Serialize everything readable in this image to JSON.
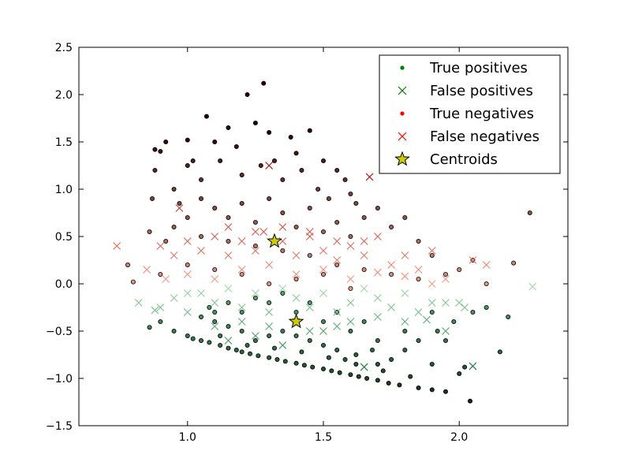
{
  "chart_data": {
    "type": "scatter",
    "title": "",
    "xlabel": "",
    "ylabel": "",
    "xlim": [
      0.6,
      2.4
    ],
    "ylim": [
      -1.5,
      2.5
    ],
    "grid": false,
    "legend_position": "top-right",
    "x_ticks": [
      {
        "value": 1.0,
        "label": "1.0"
      },
      {
        "value": 1.5,
        "label": "1.5"
      },
      {
        "value": 2.0,
        "label": "2.0"
      }
    ],
    "y_ticks": [
      {
        "value": -1.5,
        "label": "−1.5"
      },
      {
        "value": -1.0,
        "label": "−1.0"
      },
      {
        "value": -0.5,
        "label": "−0.5"
      },
      {
        "value": 0.0,
        "label": "0.0"
      },
      {
        "value": 0.5,
        "label": "0.5"
      },
      {
        "value": 1.0,
        "label": "1.0"
      },
      {
        "value": 1.5,
        "label": "1.5"
      },
      {
        "value": 2.0,
        "label": "2.0"
      },
      {
        "value": 2.5,
        "label": "2.5"
      }
    ],
    "legend": [
      {
        "label": "True positives",
        "marker": "dot",
        "color": "#008000"
      },
      {
        "label": "False positives",
        "marker": "x",
        "color": "#008000"
      },
      {
        "label": "True negatives",
        "marker": "dot",
        "color": "#ff0000"
      },
      {
        "label": "False negatives",
        "marker": "x",
        "color": "#ff0000"
      },
      {
        "label": "Centroids",
        "marker": "star",
        "color": "#cccc00"
      }
    ],
    "colors": {
      "tp_dark": "#0d2b14",
      "tp_light": "#4ca56a",
      "fp_dark": "#1a7a3a",
      "fp_light": "#a7dfb0",
      "tn_dark": "#2a0000",
      "tn_light": "#f0a18a",
      "fn_dark": "#b01010",
      "fn_light": "#f8a08a",
      "centroid": "#cccc00"
    },
    "series": [
      {
        "name": "True positives",
        "points": [
          [
            1.0,
            -0.55
          ],
          [
            1.02,
            -0.58
          ],
          [
            1.05,
            -0.6
          ],
          [
            1.08,
            -0.62
          ],
          [
            1.12,
            -0.65
          ],
          [
            1.15,
            -0.68
          ],
          [
            1.18,
            -0.7
          ],
          [
            1.2,
            -0.72
          ],
          [
            1.23,
            -0.74
          ],
          [
            1.26,
            -0.76
          ],
          [
            1.3,
            -0.78
          ],
          [
            1.33,
            -0.8
          ],
          [
            1.36,
            -0.82
          ],
          [
            1.4,
            -0.84
          ],
          [
            1.43,
            -0.86
          ],
          [
            1.46,
            -0.88
          ],
          [
            1.5,
            -0.9
          ],
          [
            1.53,
            -0.92
          ],
          [
            1.56,
            -0.94
          ],
          [
            1.6,
            -0.96
          ],
          [
            1.63,
            -0.98
          ],
          [
            1.66,
            -1.0
          ],
          [
            1.7,
            -1.02
          ],
          [
            1.74,
            -1.05
          ],
          [
            1.78,
            -1.07
          ],
          [
            1.85,
            -1.1
          ],
          [
            1.9,
            -1.12
          ],
          [
            1.95,
            -1.14
          ],
          [
            2.04,
            -1.24
          ],
          [
            1.9,
            -0.85
          ],
          [
            2.0,
            -0.95
          ],
          [
            2.15,
            -0.72
          ],
          [
            2.18,
            -0.35
          ],
          [
            2.1,
            -0.25
          ],
          [
            2.05,
            -0.3
          ],
          [
            1.98,
            -0.4
          ],
          [
            1.92,
            -0.5
          ],
          [
            1.85,
            -0.6
          ],
          [
            1.8,
            -0.7
          ],
          [
            1.75,
            -0.8
          ],
          [
            1.7,
            -0.85
          ],
          [
            1.68,
            -0.7
          ],
          [
            1.62,
            -0.75
          ],
          [
            1.58,
            -0.8
          ],
          [
            1.55,
            -0.7
          ],
          [
            1.5,
            -0.65
          ],
          [
            1.45,
            -0.6
          ],
          [
            1.4,
            -0.55
          ],
          [
            1.35,
            -0.5
          ],
          [
            1.3,
            -0.55
          ],
          [
            1.25,
            -0.6
          ],
          [
            1.2,
            -0.5
          ],
          [
            1.15,
            -0.45
          ],
          [
            1.1,
            -0.4
          ],
          [
            1.05,
            -0.35
          ],
          [
            0.95,
            -0.5
          ],
          [
            0.9,
            -0.4
          ],
          [
            0.86,
            -0.46
          ],
          [
            1.1,
            -0.3
          ],
          [
            1.2,
            -0.3
          ],
          [
            1.3,
            -0.2
          ],
          [
            1.4,
            -0.3
          ],
          [
            1.5,
            -0.4
          ],
          [
            1.6,
            -0.5
          ],
          [
            1.7,
            -0.6
          ],
          [
            1.8,
            -0.5
          ],
          [
            1.9,
            -0.3
          ],
          [
            1.95,
            -0.6
          ],
          [
            2.02,
            -0.88
          ],
          [
            1.65,
            -0.4
          ],
          [
            1.55,
            -0.3
          ],
          [
            1.45,
            -0.2
          ],
          [
            1.35,
            -0.1
          ],
          [
            1.25,
            -0.15
          ],
          [
            1.15,
            -0.2
          ],
          [
            1.08,
            -0.25
          ],
          [
            1.12,
            -0.55
          ],
          [
            1.22,
            -0.65
          ],
          [
            1.32,
            -0.68
          ],
          [
            1.42,
            -0.72
          ],
          [
            1.52,
            -0.78
          ],
          [
            1.62,
            -0.85
          ],
          [
            1.72,
            -0.92
          ],
          [
            1.82,
            -0.98
          ]
        ]
      },
      {
        "name": "False positives",
        "points": [
          [
            0.82,
            -0.2
          ],
          [
            0.88,
            -0.28
          ],
          [
            0.9,
            -0.25
          ],
          [
            0.95,
            -0.15
          ],
          [
            1.0,
            -0.3
          ],
          [
            1.05,
            -0.1
          ],
          [
            1.1,
            -0.2
          ],
          [
            1.15,
            -0.05
          ],
          [
            1.2,
            -0.25
          ],
          [
            1.25,
            -0.1
          ],
          [
            1.3,
            -0.3
          ],
          [
            1.35,
            -0.05
          ],
          [
            1.4,
            -0.15
          ],
          [
            1.45,
            -0.25
          ],
          [
            1.5,
            -0.1
          ],
          [
            1.55,
            -0.3
          ],
          [
            1.6,
            -0.2
          ],
          [
            1.65,
            -0.05
          ],
          [
            1.7,
            -0.15
          ],
          [
            1.75,
            -0.25
          ],
          [
            1.8,
            -0.1
          ],
          [
            1.85,
            -0.3
          ],
          [
            1.9,
            -0.2
          ],
          [
            1.95,
            -0.2
          ],
          [
            2.0,
            -0.2
          ],
          [
            2.02,
            -0.25
          ],
          [
            2.27,
            -0.03
          ],
          [
            1.95,
            -0.5
          ],
          [
            2.05,
            -0.87
          ],
          [
            1.65,
            -0.88
          ],
          [
            1.15,
            -0.6
          ],
          [
            1.25,
            -0.55
          ],
          [
            1.35,
            -0.65
          ],
          [
            1.45,
            -0.5
          ],
          [
            1.55,
            -0.45
          ],
          [
            1.0,
            -0.1
          ],
          [
            1.1,
            -0.45
          ],
          [
            1.2,
            -0.4
          ],
          [
            1.3,
            -0.45
          ],
          [
            1.4,
            -0.4
          ],
          [
            1.5,
            -0.5
          ],
          [
            1.6,
            -0.4
          ],
          [
            1.7,
            -0.35
          ],
          [
            1.8,
            -0.4
          ],
          [
            1.88,
            -0.38
          ]
        ]
      },
      {
        "name": "True negatives",
        "points": [
          [
            0.78,
            0.2
          ],
          [
            0.8,
            0.02
          ],
          [
            0.86,
            0.55
          ],
          [
            0.87,
            0.9
          ],
          [
            0.88,
            1.2
          ],
          [
            0.88,
            1.42
          ],
          [
            0.9,
            1.4
          ],
          [
            0.92,
            1.5
          ],
          [
            0.95,
            1.0
          ],
          [
            0.97,
            0.85
          ],
          [
            1.0,
            1.25
          ],
          [
            1.0,
            1.52
          ],
          [
            1.02,
            1.3
          ],
          [
            1.05,
            1.1
          ],
          [
            1.07,
            1.77
          ],
          [
            1.1,
            1.5
          ],
          [
            1.12,
            1.3
          ],
          [
            1.15,
            1.65
          ],
          [
            1.18,
            1.45
          ],
          [
            1.2,
            1.15
          ],
          [
            1.22,
            2.0
          ],
          [
            1.25,
            1.7
          ],
          [
            1.27,
            1.25
          ],
          [
            1.28,
            2.12
          ],
          [
            1.3,
            1.6
          ],
          [
            1.32,
            1.3
          ],
          [
            1.35,
            1.1
          ],
          [
            1.38,
            1.55
          ],
          [
            1.4,
            1.38
          ],
          [
            1.42,
            1.2
          ],
          [
            1.45,
            1.62
          ],
          [
            1.48,
            1.0
          ],
          [
            1.5,
            1.3
          ],
          [
            1.52,
            0.9
          ],
          [
            1.55,
            1.2
          ],
          [
            1.58,
            1.1
          ],
          [
            1.6,
            0.95
          ],
          [
            1.62,
            0.85
          ],
          [
            1.65,
            0.7
          ],
          [
            1.7,
            0.8
          ],
          [
            1.75,
            0.6
          ],
          [
            1.8,
            0.7
          ],
          [
            1.85,
            0.45
          ],
          [
            1.9,
            0.3
          ],
          [
            1.95,
            0.1
          ],
          [
            2.0,
            0.15
          ],
          [
            2.05,
            0.25
          ],
          [
            2.1,
            0.0
          ],
          [
            2.2,
            0.22
          ],
          [
            2.26,
            0.75
          ],
          [
            1.05,
            0.9
          ],
          [
            1.1,
            0.8
          ],
          [
            1.15,
            0.7
          ],
          [
            1.2,
            0.85
          ],
          [
            1.25,
            0.65
          ],
          [
            1.3,
            0.9
          ],
          [
            1.35,
            0.75
          ],
          [
            1.4,
            0.6
          ],
          [
            1.45,
            0.8
          ],
          [
            1.5,
            0.55
          ],
          [
            1.55,
            0.65
          ],
          [
            1.6,
            0.5
          ],
          [
            1.0,
            0.7
          ],
          [
            0.95,
            0.6
          ],
          [
            0.92,
            0.45
          ],
          [
            1.05,
            0.5
          ],
          [
            1.15,
            0.45
          ],
          [
            1.25,
            0.4
          ],
          [
            1.35,
            0.35
          ],
          [
            1.45,
            0.3
          ],
          [
            1.55,
            0.2
          ],
          [
            1.65,
            0.15
          ],
          [
            1.75,
            0.1
          ],
          [
            1.85,
            0.05
          ],
          [
            1.3,
            0.0
          ],
          [
            1.4,
            0.05
          ],
          [
            1.5,
            0.1
          ],
          [
            1.6,
            -0.05
          ],
          [
            1.2,
            0.1
          ],
          [
            1.1,
            0.15
          ],
          [
            1.0,
            0.2
          ],
          [
            0.9,
            0.1
          ]
        ]
      },
      {
        "name": "False negatives",
        "points": [
          [
            0.74,
            0.4
          ],
          [
            0.85,
            0.15
          ],
          [
            0.9,
            0.4
          ],
          [
            0.95,
            0.3
          ],
          [
            0.97,
            0.8
          ],
          [
            1.0,
            0.45
          ],
          [
            1.05,
            0.35
          ],
          [
            1.1,
            0.5
          ],
          [
            1.15,
            0.3
          ],
          [
            1.2,
            0.45
          ],
          [
            1.25,
            0.35
          ],
          [
            1.28,
            0.55
          ],
          [
            1.3,
            1.25
          ],
          [
            1.35,
            0.45
          ],
          [
            1.4,
            0.3
          ],
          [
            1.45,
            0.5
          ],
          [
            1.5,
            0.35
          ],
          [
            1.55,
            0.25
          ],
          [
            1.6,
            0.4
          ],
          [
            1.65,
            0.3
          ],
          [
            1.67,
            1.13
          ],
          [
            1.7,
            0.5
          ],
          [
            1.75,
            0.2
          ],
          [
            1.8,
            0.3
          ],
          [
            1.85,
            0.15
          ],
          [
            1.9,
            0.35
          ],
          [
            1.95,
            0.05
          ],
          [
            2.05,
            0.25
          ],
          [
            2.1,
            0.2
          ],
          [
            0.92,
            0.05
          ],
          [
            1.0,
            0.1
          ],
          [
            1.1,
            0.05
          ],
          [
            1.2,
            0.15
          ],
          [
            1.3,
            0.2
          ],
          [
            1.4,
            0.1
          ],
          [
            1.5,
            0.15
          ],
          [
            1.6,
            0.05
          ],
          [
            1.7,
            0.12
          ],
          [
            1.8,
            0.08
          ],
          [
            1.9,
            0.0
          ],
          [
            1.15,
            0.6
          ],
          [
            1.25,
            0.55
          ],
          [
            1.35,
            0.6
          ],
          [
            1.45,
            0.55
          ],
          [
            1.55,
            0.45
          ],
          [
            1.65,
            0.45
          ]
        ]
      },
      {
        "name": "Centroids",
        "points": [
          [
            1.32,
            0.45
          ],
          [
            1.4,
            -0.4
          ]
        ]
      }
    ]
  }
}
